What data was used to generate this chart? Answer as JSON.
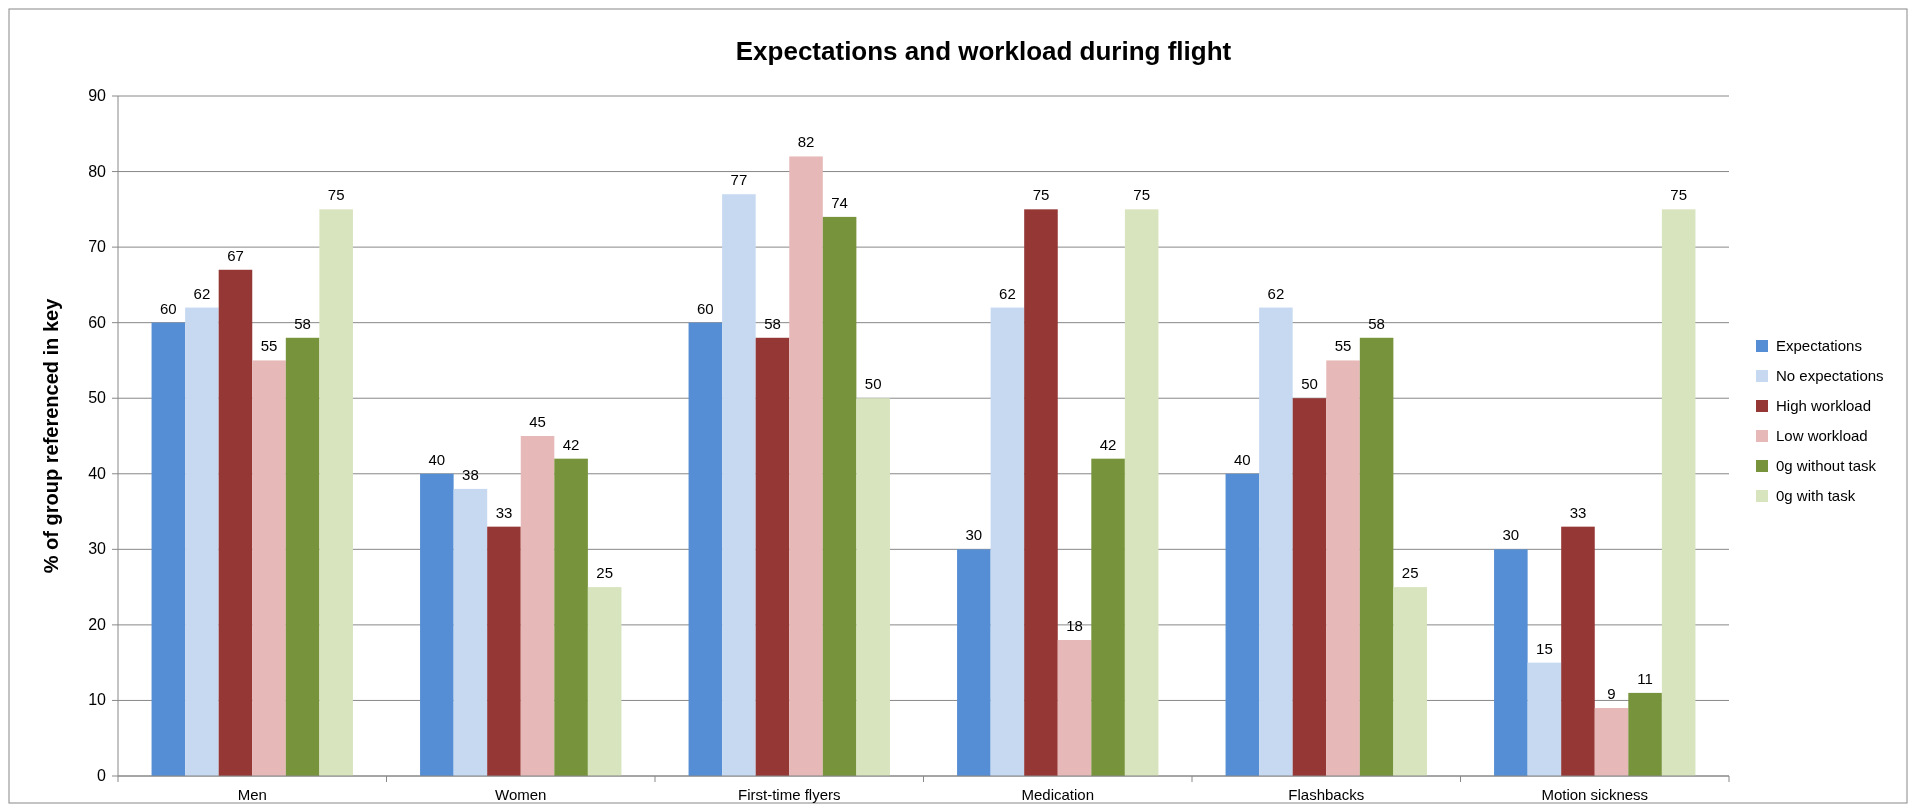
{
  "chart_data": {
    "type": "bar",
    "title": "Expectations and workload during flight",
    "ylabel": "% of group referenced in key",
    "categories": [
      "Men",
      "Women",
      "First-time flyers",
      "Medication",
      "Flashbacks",
      "Motion sickness"
    ],
    "series": [
      {
        "name": "Expectations",
        "color": "#558ed5",
        "values": [
          60,
          40,
          60,
          30,
          40,
          30
        ]
      },
      {
        "name": "No expectations",
        "color": "#c6d9f1",
        "values": [
          62,
          38,
          77,
          62,
          62,
          15
        ]
      },
      {
        "name": "High workload",
        "color": "#953735",
        "values": [
          67,
          33,
          58,
          75,
          50,
          33
        ]
      },
      {
        "name": "Low workload",
        "color": "#e6b9b8",
        "values": [
          55,
          45,
          82,
          18,
          55,
          9
        ]
      },
      {
        "name": "0g without task",
        "color": "#77933c",
        "values": [
          58,
          42,
          74,
          42,
          58,
          11
        ]
      },
      {
        "name": "0g with task",
        "color": "#d7e4bd",
        "values": [
          75,
          25,
          50,
          75,
          25,
          75
        ]
      }
    ],
    "ylim": [
      0,
      90
    ],
    "yticks": [
      0,
      10,
      20,
      30,
      40,
      50,
      60,
      70,
      80,
      90
    ],
    "grid": "y",
    "legend": "right",
    "data_labels": true
  }
}
